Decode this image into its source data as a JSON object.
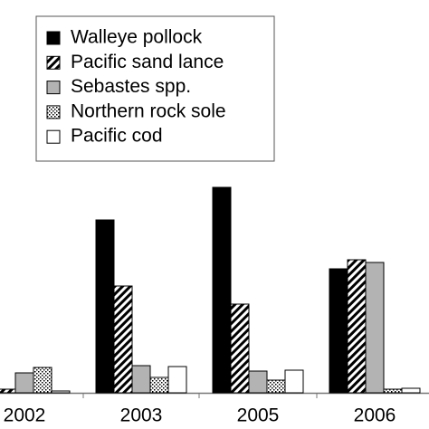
{
  "chart_data": {
    "type": "bar",
    "categories": [
      "2002",
      "2003",
      "2005",
      "2006"
    ],
    "series": [
      {
        "name": "Walleye pollock",
        "color": "#000000",
        "pattern": "solid",
        "values": [
          null,
          191,
          227,
          137
        ]
      },
      {
        "name": "Pacific sand lance",
        "color": "#000000",
        "pattern": "hatch",
        "values": [
          4,
          118,
          98,
          147
        ]
      },
      {
        "name": "Sebastes spp.",
        "color": "#b3b3b3",
        "pattern": "solid",
        "values": [
          22,
          30,
          24,
          144
        ]
      },
      {
        "name": "Northern rock sole",
        "color": "#000000",
        "pattern": "dots",
        "values": [
          28,
          17,
          14,
          4
        ]
      },
      {
        "name": "Pacific cod",
        "color": "#ffffff",
        "pattern": "solid",
        "values": [
          2,
          29,
          25,
          5
        ]
      }
    ],
    "ylim": [
      0,
      250
    ]
  }
}
